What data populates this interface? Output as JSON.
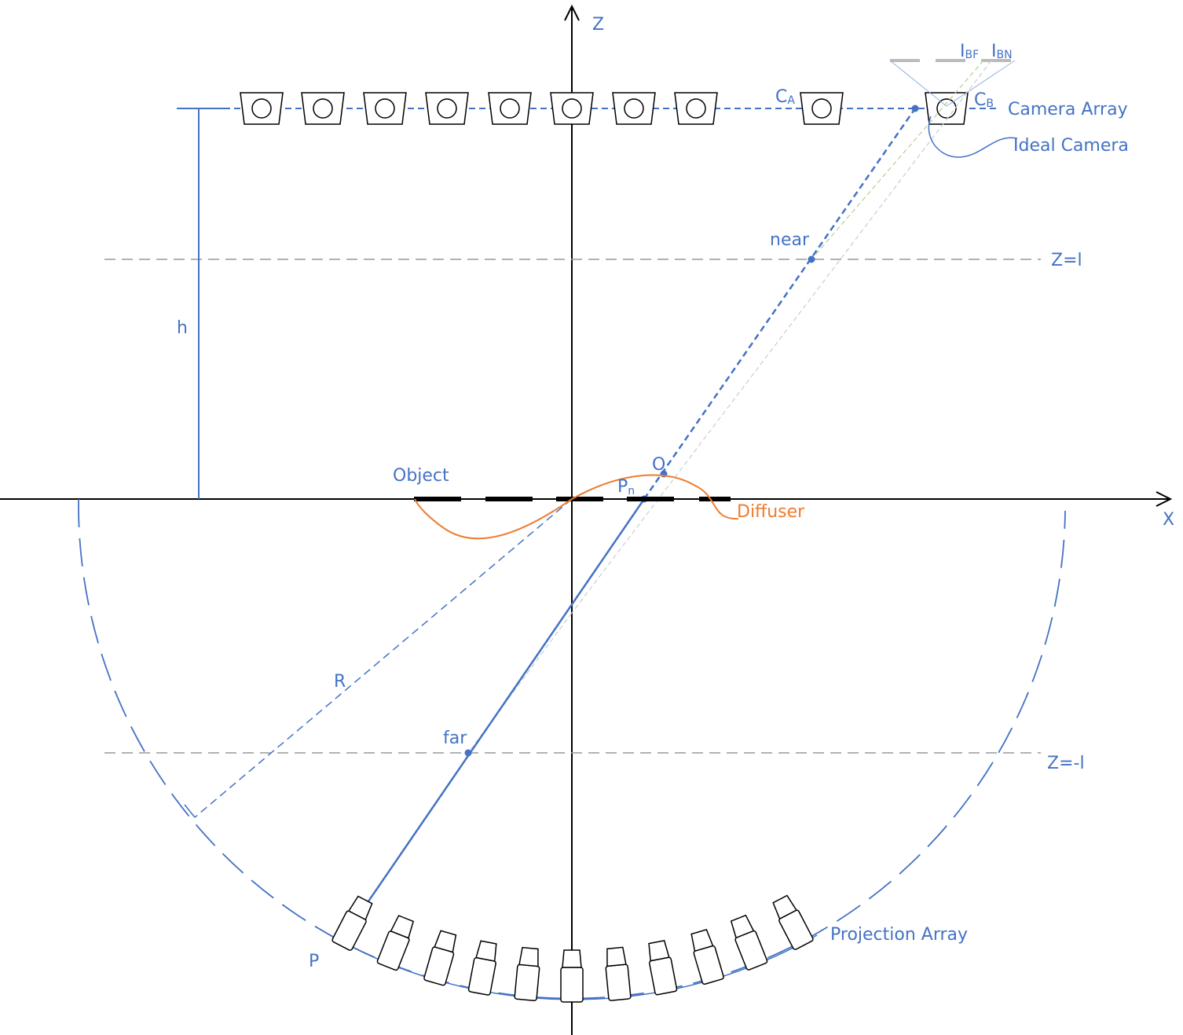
{
  "axes": {
    "z": "Z",
    "x": "X"
  },
  "camera_array": {
    "label": "Camera  Array",
    "ideal_camera": "Ideal Camera",
    "ca": {
      "text": "C",
      "sub": "A"
    },
    "cb": {
      "text": "C",
      "sub": "B"
    },
    "ibf": {
      "text": "I",
      "sub": "BF"
    },
    "ibn": {
      "text": "I",
      "sub": "BN"
    }
  },
  "planes": {
    "near_plane": "Z=l",
    "far_plane": "Z=-l",
    "near": "near",
    "far": "far"
  },
  "labels": {
    "h": "h",
    "r": "R",
    "object": "Object",
    "o": "O",
    "pn": {
      "text": "P",
      "sub": "n"
    },
    "diffuser": "Diffuser",
    "p": "P"
  },
  "projection_array": {
    "label": "Projection Array"
  }
}
